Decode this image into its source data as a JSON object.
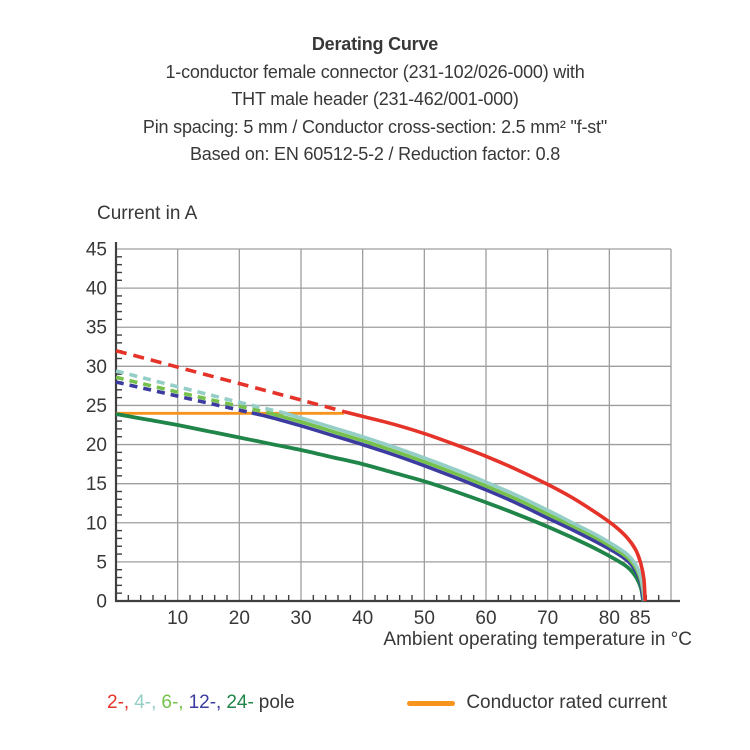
{
  "title_block": {
    "line1": "Derating Curve",
    "line2": "1-conductor female connector (231-102/026-000) with",
    "line3": "THT male header (231-462/001-000)",
    "line4": "Pin spacing: 5 mm / Conductor cross-section: 2.5 mm² \"f-st\"",
    "line5": "Based on: EN 60512-5-2 / Reduction factor: 0.8"
  },
  "chart_data": {
    "type": "line",
    "title": "Derating Curve",
    "ylabel": "Current in A",
    "xlabel": "Ambient operating temperature in °C",
    "xlim": [
      0,
      90
    ],
    "ylim": [
      0,
      45
    ],
    "x_ticks": [
      10,
      20,
      30,
      40,
      50,
      60,
      70,
      80,
      85
    ],
    "y_ticks": [
      0,
      5,
      10,
      15,
      20,
      25,
      30,
      35,
      40,
      45
    ],
    "x_minor_step": 2,
    "y_minor_step": 1,
    "grid": true,
    "grid_color": "#9e9e9e",
    "axis_color": "#3f3f3f",
    "text_color": "#383838",
    "series": [
      {
        "id": "conductor-rated-current",
        "label": "Conductor rated current",
        "color": "#F6941D",
        "width": 2.8,
        "segments": [
          {
            "style": "solid",
            "points": [
              [
                0,
                24
              ],
              [
                37,
                24
              ]
            ]
          }
        ]
      },
      {
        "id": "pole-24",
        "label": "24-pole",
        "color": "#208549",
        "width": 3.8,
        "segments": [
          {
            "style": "solid",
            "points": [
              [
                0,
                23.9
              ],
              [
                5,
                23.2
              ],
              [
                10,
                22.5
              ],
              [
                15,
                21.7
              ],
              [
                20,
                20.9
              ],
              [
                25,
                20.1
              ],
              [
                30,
                19.3
              ],
              [
                35,
                18.4
              ],
              [
                40,
                17.5
              ],
              [
                45,
                16.4
              ],
              [
                50,
                15.3
              ],
              [
                55,
                14.0
              ],
              [
                60,
                12.6
              ],
              [
                65,
                11.1
              ],
              [
                70,
                9.5
              ],
              [
                74,
                8.1
              ],
              [
                78,
                6.6
              ],
              [
                81,
                5.3
              ],
              [
                83,
                4.3
              ],
              [
                84.3,
                3.1
              ],
              [
                85.1,
                1.7
              ],
              [
                85.4,
                0.5
              ],
              [
                85.5,
                0
              ]
            ]
          }
        ]
      },
      {
        "id": "pole-12",
        "label": "12-pole",
        "color": "#3C3CA0",
        "width": 3.6,
        "segments": [
          {
            "style": "dashed",
            "dash": [
              8,
              6
            ],
            "points": [
              [
                0,
                28.0
              ],
              [
                10,
                26.2
              ],
              [
                20,
                24.4
              ],
              [
                22,
                24.05
              ]
            ]
          },
          {
            "style": "solid",
            "points": [
              [
                22,
                24.05
              ],
              [
                25,
                23.5
              ],
              [
                30,
                22.4
              ],
              [
                35,
                21.2
              ],
              [
                40,
                20.0
              ],
              [
                45,
                18.7
              ],
              [
                50,
                17.3
              ],
              [
                55,
                15.8
              ],
              [
                60,
                14.2
              ],
              [
                65,
                12.5
              ],
              [
                70,
                10.6
              ],
              [
                74,
                9.1
              ],
              [
                78,
                7.5
              ],
              [
                81,
                6.2
              ],
              [
                83,
                5.1
              ],
              [
                84.3,
                3.8
              ],
              [
                85.1,
                2.3
              ],
              [
                85.4,
                0.8
              ],
              [
                85.6,
                0
              ]
            ]
          }
        ]
      },
      {
        "id": "pole-6",
        "label": "6-pole",
        "color": "#76C14B",
        "width": 3.6,
        "segments": [
          {
            "style": "dashed",
            "dash": [
              8,
              6
            ],
            "points": [
              [
                0,
                28.6
              ],
              [
                10,
                26.7
              ],
              [
                20,
                24.9
              ],
              [
                24.5,
                24.1
              ]
            ]
          },
          {
            "style": "solid",
            "points": [
              [
                24.5,
                24.1
              ],
              [
                30,
                22.9
              ],
              [
                35,
                21.7
              ],
              [
                40,
                20.5
              ],
              [
                45,
                19.2
              ],
              [
                50,
                17.8
              ],
              [
                55,
                16.3
              ],
              [
                60,
                14.7
              ],
              [
                65,
                13.0
              ],
              [
                70,
                11.1
              ],
              [
                74,
                9.6
              ],
              [
                78,
                8.0
              ],
              [
                81,
                6.6
              ],
              [
                83,
                5.5
              ],
              [
                84.3,
                4.2
              ],
              [
                85.1,
                2.7
              ],
              [
                85.5,
                1.1
              ],
              [
                85.7,
                0
              ]
            ]
          }
        ]
      },
      {
        "id": "pole-4",
        "label": "4-pole",
        "color": "#94CEC7",
        "width": 3.6,
        "segments": [
          {
            "style": "dashed",
            "dash": [
              8,
              6
            ],
            "points": [
              [
                0,
                29.4
              ],
              [
                10,
                27.4
              ],
              [
                20,
                25.4
              ],
              [
                27,
                24.1
              ]
            ]
          },
          {
            "style": "solid",
            "points": [
              [
                27,
                24.1
              ],
              [
                30,
                23.4
              ],
              [
                35,
                22.2
              ],
              [
                40,
                21.0
              ],
              [
                45,
                19.7
              ],
              [
                50,
                18.3
              ],
              [
                55,
                16.8
              ],
              [
                60,
                15.2
              ],
              [
                65,
                13.5
              ],
              [
                70,
                11.6
              ],
              [
                74,
                10.0
              ],
              [
                78,
                8.4
              ],
              [
                81,
                7.0
              ],
              [
                83,
                5.9
              ],
              [
                84.3,
                4.6
              ],
              [
                85.1,
                3.1
              ],
              [
                85.5,
                1.4
              ],
              [
                85.7,
                0
              ]
            ]
          }
        ]
      },
      {
        "id": "pole-2",
        "label": "2-pole",
        "color": "#E5332A",
        "width": 3.6,
        "segments": [
          {
            "style": "dashed",
            "dash": [
              11,
              7
            ],
            "points": [
              [
                0,
                32.0
              ],
              [
                10,
                29.9
              ],
              [
                20,
                27.8
              ],
              [
                30,
                25.7
              ],
              [
                37,
                24.2
              ]
            ]
          },
          {
            "style": "solid",
            "points": [
              [
                37,
                24.2
              ],
              [
                40,
                23.6
              ],
              [
                45,
                22.6
              ],
              [
                50,
                21.4
              ],
              [
                55,
                20.0
              ],
              [
                60,
                18.5
              ],
              [
                65,
                16.8
              ],
              [
                70,
                14.9
              ],
              [
                74,
                13.2
              ],
              [
                78,
                11.2
              ],
              [
                81,
                9.5
              ],
              [
                83,
                8.0
              ],
              [
                84.3,
                6.5
              ],
              [
                85.1,
                4.8
              ],
              [
                85.6,
                2.8
              ],
              [
                85.8,
                0
              ]
            ]
          }
        ]
      }
    ]
  },
  "legend": {
    "pole_items": [
      {
        "label": "2-,",
        "color": "#E5332A"
      },
      {
        "label": "4-,",
        "color": "#94CEC7"
      },
      {
        "label": "6-,",
        "color": "#76C14B"
      },
      {
        "label": "12-,",
        "color": "#3C3CA0"
      },
      {
        "label": "24-",
        "color": "#208549"
      }
    ],
    "pole_suffix": "pole",
    "rated_label": "Conductor rated current",
    "rated_color": "#F6941D"
  }
}
